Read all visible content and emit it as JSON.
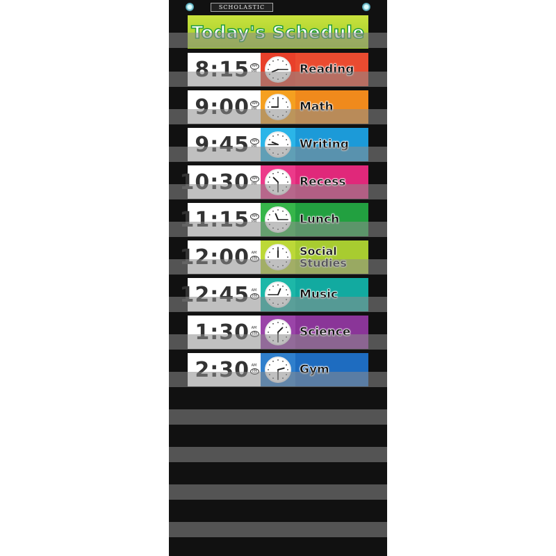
{
  "brand": "SCHOLASTIC",
  "title": "Today's Schedule",
  "am_label": "AM",
  "pm_label": "PM",
  "rows": [
    {
      "time": "8:15",
      "hour": 8,
      "minute": 15,
      "period": "AM",
      "subject": "Reading",
      "color": "#e8402a",
      "subject_color": "#ea4b30"
    },
    {
      "time": "9:00",
      "hour": 9,
      "minute": 0,
      "period": "AM",
      "subject": "Math",
      "color": "#f5a020",
      "subject_color": "#f08a1c"
    },
    {
      "time": "9:45",
      "hour": 9,
      "minute": 45,
      "period": "AM",
      "subject": "Writing",
      "color": "#2bb5e8",
      "subject_color": "#1c9ad8"
    },
    {
      "time": "10:30",
      "hour": 10,
      "minute": 30,
      "period": "AM",
      "subject": "Recess",
      "color": "#ec3a8a",
      "subject_color": "#e0287a"
    },
    {
      "time": "11:15",
      "hour": 11,
      "minute": 15,
      "period": "AM",
      "subject": "Lunch",
      "color": "#36b54a",
      "subject_color": "#22a040"
    },
    {
      "time": "12:00",
      "hour": 12,
      "minute": 0,
      "period": "PM",
      "subject": "Social Studies",
      "color": "#bcd838",
      "subject_color": "#a8cc30"
    },
    {
      "time": "12:45",
      "hour": 12,
      "minute": 45,
      "period": "PM",
      "subject": "Music",
      "color": "#1db7a8",
      "subject_color": "#12aaa0"
    },
    {
      "time": "1:30",
      "hour": 1,
      "minute": 30,
      "period": "PM",
      "subject": "Science",
      "color": "#9a44a8",
      "subject_color": "#8a3598"
    },
    {
      "time": "2:30",
      "hour": 2,
      "minute": 30,
      "period": "PM",
      "subject": "Gym",
      "color": "#2f7fcc",
      "subject_color": "#1e6cc0"
    }
  ],
  "empty_pockets": 4
}
